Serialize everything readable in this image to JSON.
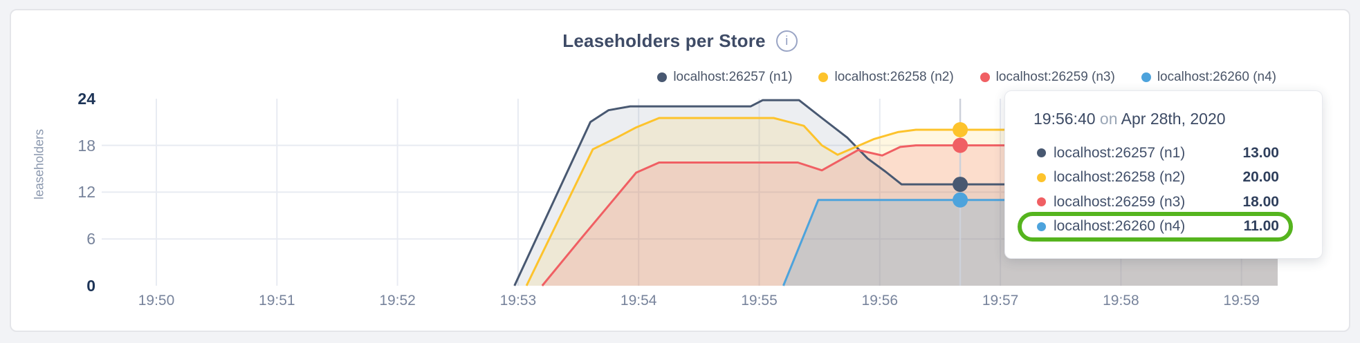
{
  "page": {
    "background": "#f2f3f6"
  },
  "card": {
    "background": "#ffffff",
    "border_color": "#e4e5e9"
  },
  "chart": {
    "title": "Leaseholders per Store",
    "info_icon_glyph": "i",
    "y_axis": {
      "label": "leaseholders",
      "ticks": [
        {
          "value": 24,
          "emphasized": true
        },
        {
          "value": 18,
          "emphasized": false
        },
        {
          "value": 12,
          "emphasized": false
        },
        {
          "value": 6,
          "emphasized": false
        },
        {
          "value": 0,
          "emphasized": true
        }
      ],
      "grid_values": [
        18,
        12,
        6
      ]
    },
    "x_axis": {
      "ticks": [
        "19:50",
        "19:51",
        "19:52",
        "19:53",
        "19:54",
        "19:55",
        "19:56",
        "19:57",
        "19:58",
        "19:59"
      ]
    }
  },
  "legend": {
    "items": [
      {
        "label": "localhost:26257 (n1)",
        "color": "#485871"
      },
      {
        "label": "localhost:26258 (n2)",
        "color": "#FDC32C"
      },
      {
        "label": "localhost:26259 (n3)",
        "color": "#F05F63"
      },
      {
        "label": "localhost:26260 (n4)",
        "color": "#4DA3DC"
      }
    ]
  },
  "tooltip": {
    "time": "19:56:40",
    "conjunction": "on",
    "date": "Apr 28th, 2020",
    "rows": [
      {
        "label": "localhost:26257 (n1)",
        "value": "13.00",
        "color": "#485871",
        "highlighted": false
      },
      {
        "label": "localhost:26258 (n2)",
        "value": "20.00",
        "color": "#FDC32C",
        "highlighted": false
      },
      {
        "label": "localhost:26259 (n3)",
        "value": "18.00",
        "color": "#F05F63",
        "highlighted": false
      },
      {
        "label": "localhost:26260 (n4)",
        "value": "11.00",
        "color": "#4DA3DC",
        "highlighted": true
      }
    ],
    "highlight_color": "#55b41e"
  },
  "chart_data": {
    "type": "area",
    "title": "Leaseholders per Store",
    "ylabel": "leaseholders",
    "xlabel": "",
    "x_unit": "minutes after 19:50",
    "x_tick_labels": [
      "19:50",
      "19:51",
      "19:52",
      "19:53",
      "19:54",
      "19:55",
      "19:56",
      "19:57",
      "19:58",
      "19:59"
    ],
    "ylim": [
      0,
      24
    ],
    "y_ticks": [
      0,
      6,
      12,
      18,
      24
    ],
    "grid": true,
    "legend_position": "top-right",
    "series": [
      {
        "name": "localhost:26257 (n1)",
        "color": "#485871",
        "points": [
          [
            2.97,
            0
          ],
          [
            3.6,
            21
          ],
          [
            3.75,
            22.5
          ],
          [
            3.93,
            23
          ],
          [
            4.93,
            23
          ],
          [
            5.03,
            23.8
          ],
          [
            5.33,
            23.8
          ],
          [
            5.52,
            21.5
          ],
          [
            5.73,
            19
          ],
          [
            5.9,
            16.3
          ],
          [
            6.05,
            14.6
          ],
          [
            6.18,
            13
          ],
          [
            9.3,
            13
          ]
        ]
      },
      {
        "name": "localhost:26258 (n2)",
        "color": "#FDC32C",
        "points": [
          [
            3.07,
            0
          ],
          [
            3.62,
            17.5
          ],
          [
            3.82,
            19
          ],
          [
            3.98,
            20.3
          ],
          [
            4.17,
            21.5
          ],
          [
            5.12,
            21.5
          ],
          [
            5.37,
            20.5
          ],
          [
            5.52,
            18
          ],
          [
            5.65,
            16.8
          ],
          [
            5.95,
            18.8
          ],
          [
            6.15,
            19.7
          ],
          [
            6.3,
            20
          ],
          [
            9.3,
            20
          ]
        ]
      },
      {
        "name": "localhost:26259 (n3)",
        "color": "#F05F63",
        "points": [
          [
            3.2,
            0
          ],
          [
            3.52,
            6
          ],
          [
            3.98,
            14.5
          ],
          [
            4.17,
            15.8
          ],
          [
            5.32,
            15.8
          ],
          [
            5.52,
            14.8
          ],
          [
            5.82,
            17.4
          ],
          [
            6.02,
            16.7
          ],
          [
            6.17,
            17.8
          ],
          [
            6.3,
            18
          ],
          [
            9.3,
            18
          ]
        ]
      },
      {
        "name": "localhost:26260 (n4)",
        "color": "#4DA3DC",
        "points": [
          [
            5.2,
            0
          ],
          [
            5.49,
            11
          ],
          [
            9.3,
            11
          ]
        ]
      }
    ],
    "hover": {
      "x": 6.667,
      "time": "19:56:40",
      "date": "Apr 28th, 2020",
      "values": [
        13,
        20,
        18,
        11
      ],
      "highlighted_series": "localhost:26260 (n4)"
    }
  }
}
